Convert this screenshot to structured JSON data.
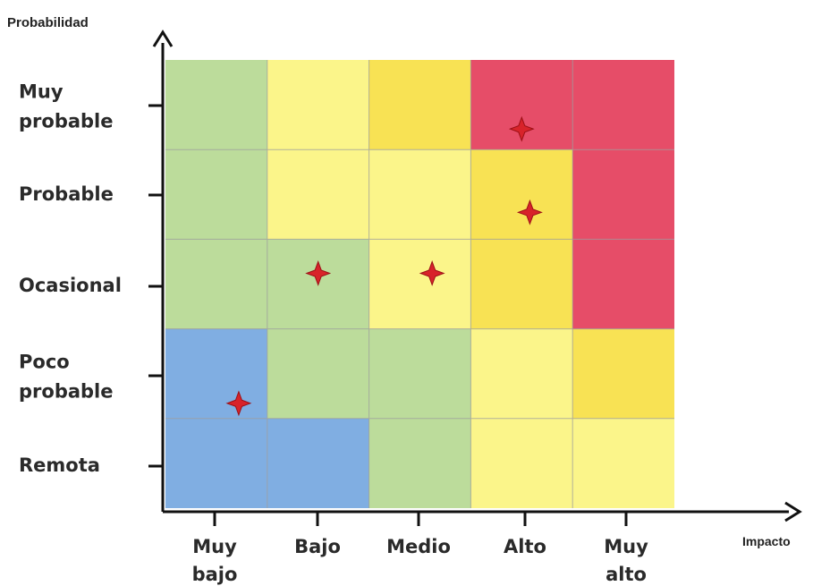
{
  "chart_data": {
    "type": "heatmap",
    "y_axis_title": "Probabilidad",
    "x_axis_title": "Impacto",
    "x_categories": [
      {
        "lines": [
          "Muy",
          "bajo"
        ]
      },
      {
        "lines": [
          "Bajo"
        ]
      },
      {
        "lines": [
          "Medio"
        ]
      },
      {
        "lines": [
          "Alto"
        ]
      },
      {
        "lines": [
          "Muy",
          "alto"
        ]
      }
    ],
    "y_categories": [
      {
        "lines": [
          "Muy",
          "probable"
        ]
      },
      {
        "lines": [
          "Probable"
        ]
      },
      {
        "lines": [
          "Ocasional"
        ]
      },
      {
        "lines": [
          "Poco",
          "probable"
        ]
      },
      {
        "lines": [
          "Remota"
        ]
      }
    ],
    "palette": {
      "blue": "#80aee2",
      "green": "#bcdc9b",
      "light_yellow": "#fbf58a",
      "yellow": "#f8e254",
      "red": "#e64d68"
    },
    "cell_colors": [
      [
        "green",
        "light_yellow",
        "yellow",
        "red",
        "red"
      ],
      [
        "green",
        "light_yellow",
        "light_yellow",
        "yellow",
        "red"
      ],
      [
        "green",
        "green",
        "light_yellow",
        "yellow",
        "red"
      ],
      [
        "blue",
        "green",
        "green",
        "light_yellow",
        "yellow"
      ],
      [
        "blue",
        "blue",
        "green",
        "light_yellow",
        "light_yellow"
      ]
    ],
    "markers": [
      {
        "impacto": "Alto",
        "probabilidad": "Muy probable"
      },
      {
        "impacto": "Alto",
        "probabilidad": "Probable"
      },
      {
        "impacto": "Bajo",
        "probabilidad": "Ocasional"
      },
      {
        "impacto": "Medio",
        "probabilidad": "Ocasional"
      },
      {
        "impacto": "Muy bajo",
        "probabilidad": "Poco probable"
      }
    ],
    "marker_color": "#d8232a",
    "grid": true
  }
}
